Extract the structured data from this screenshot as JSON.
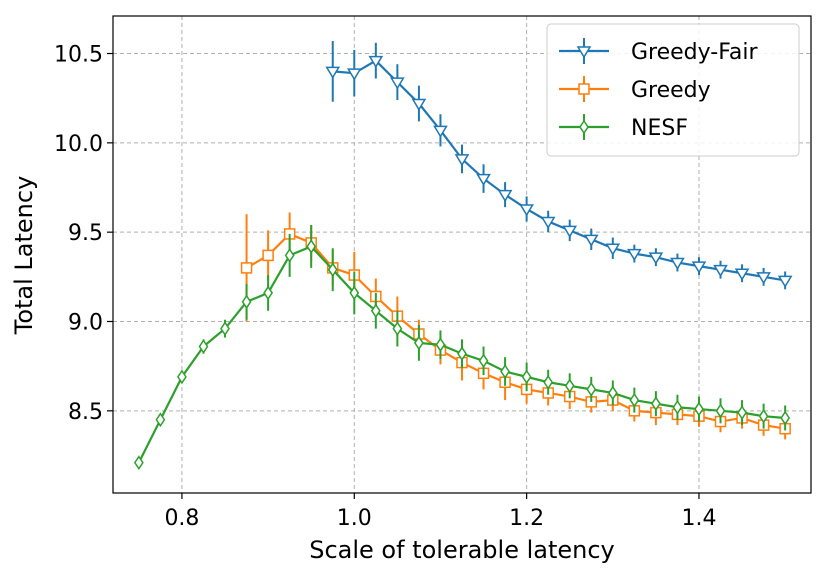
{
  "chart_data": {
    "type": "line",
    "title": "",
    "xlabel": "Scale of tolerable latency",
    "ylabel": "Total Latency",
    "xlim": [
      0.72,
      1.53
    ],
    "ylim": [
      8.04,
      10.71
    ],
    "x_ticks": [
      0.8,
      1.0,
      1.2,
      1.4
    ],
    "x_tick_labels": [
      "0.8",
      "1.0",
      "1.2",
      "1.4"
    ],
    "y_ticks": [
      8.5,
      9.0,
      9.5,
      10.0,
      10.5
    ],
    "y_tick_labels": [
      "8.5",
      "9.0",
      "9.5",
      "10.0",
      "10.5"
    ],
    "grid": true,
    "legend_position": "top-right",
    "series": [
      {
        "name": "Greedy-Fair",
        "color": "#1f77b4",
        "marker": "triangle-down",
        "x": [
          0.975,
          1.0,
          1.025,
          1.05,
          1.075,
          1.1,
          1.125,
          1.15,
          1.175,
          1.2,
          1.225,
          1.25,
          1.275,
          1.3,
          1.325,
          1.35,
          1.375,
          1.4,
          1.425,
          1.45,
          1.475,
          1.5
        ],
        "y": [
          10.4,
          10.39,
          10.46,
          10.34,
          10.22,
          10.07,
          9.91,
          9.8,
          9.71,
          9.63,
          9.56,
          9.51,
          9.46,
          9.41,
          9.38,
          9.36,
          9.33,
          9.31,
          9.29,
          9.27,
          9.25,
          9.23
        ],
        "err": [
          0.17,
          0.13,
          0.1,
          0.1,
          0.1,
          0.09,
          0.08,
          0.08,
          0.07,
          0.07,
          0.06,
          0.06,
          0.06,
          0.06,
          0.05,
          0.05,
          0.05,
          0.05,
          0.05,
          0.05,
          0.05,
          0.05
        ]
      },
      {
        "name": "Greedy",
        "color": "#ff7f0e",
        "marker": "square",
        "x": [
          0.875,
          0.9,
          0.925,
          0.95,
          0.975,
          1.0,
          1.025,
          1.05,
          1.075,
          1.1,
          1.125,
          1.15,
          1.175,
          1.2,
          1.225,
          1.25,
          1.275,
          1.3,
          1.325,
          1.35,
          1.375,
          1.4,
          1.425,
          1.45,
          1.475,
          1.5
        ],
        "y": [
          9.3,
          9.37,
          9.49,
          9.44,
          9.3,
          9.26,
          9.14,
          9.03,
          8.93,
          8.84,
          8.77,
          8.71,
          8.66,
          8.62,
          8.6,
          8.58,
          8.55,
          8.56,
          8.5,
          8.49,
          8.48,
          8.47,
          8.44,
          8.46,
          8.42,
          8.4
        ],
        "err": [
          0.3,
          0.14,
          0.12,
          0.1,
          0.1,
          0.13,
          0.1,
          0.11,
          0.08,
          0.08,
          0.1,
          0.09,
          0.1,
          0.08,
          0.07,
          0.07,
          0.06,
          0.06,
          0.06,
          0.07,
          0.06,
          0.06,
          0.06,
          0.06,
          0.06,
          0.06
        ]
      },
      {
        "name": "NESF",
        "color": "#2ca02c",
        "marker": "diamond",
        "x": [
          0.75,
          0.775,
          0.8,
          0.825,
          0.85,
          0.875,
          0.9,
          0.925,
          0.95,
          0.975,
          1.0,
          1.025,
          1.05,
          1.075,
          1.1,
          1.125,
          1.15,
          1.175,
          1.2,
          1.225,
          1.25,
          1.275,
          1.3,
          1.325,
          1.35,
          1.375,
          1.4,
          1.425,
          1.45,
          1.475,
          1.5
        ],
        "y": [
          8.21,
          8.45,
          8.69,
          8.86,
          8.96,
          9.11,
          9.16,
          9.37,
          9.42,
          9.29,
          9.16,
          9.06,
          8.96,
          8.88,
          8.87,
          8.82,
          8.78,
          8.72,
          8.69,
          8.66,
          8.64,
          8.62,
          8.6,
          8.56,
          8.54,
          8.52,
          8.51,
          8.5,
          8.49,
          8.47,
          8.46
        ],
        "err": [
          0.03,
          0.03,
          0.03,
          0.04,
          0.05,
          0.1,
          0.1,
          0.12,
          0.12,
          0.12,
          0.12,
          0.1,
          0.1,
          0.1,
          0.08,
          0.08,
          0.08,
          0.08,
          0.08,
          0.07,
          0.07,
          0.07,
          0.07,
          0.07,
          0.07,
          0.07,
          0.07,
          0.07,
          0.07,
          0.07,
          0.07
        ]
      }
    ]
  }
}
